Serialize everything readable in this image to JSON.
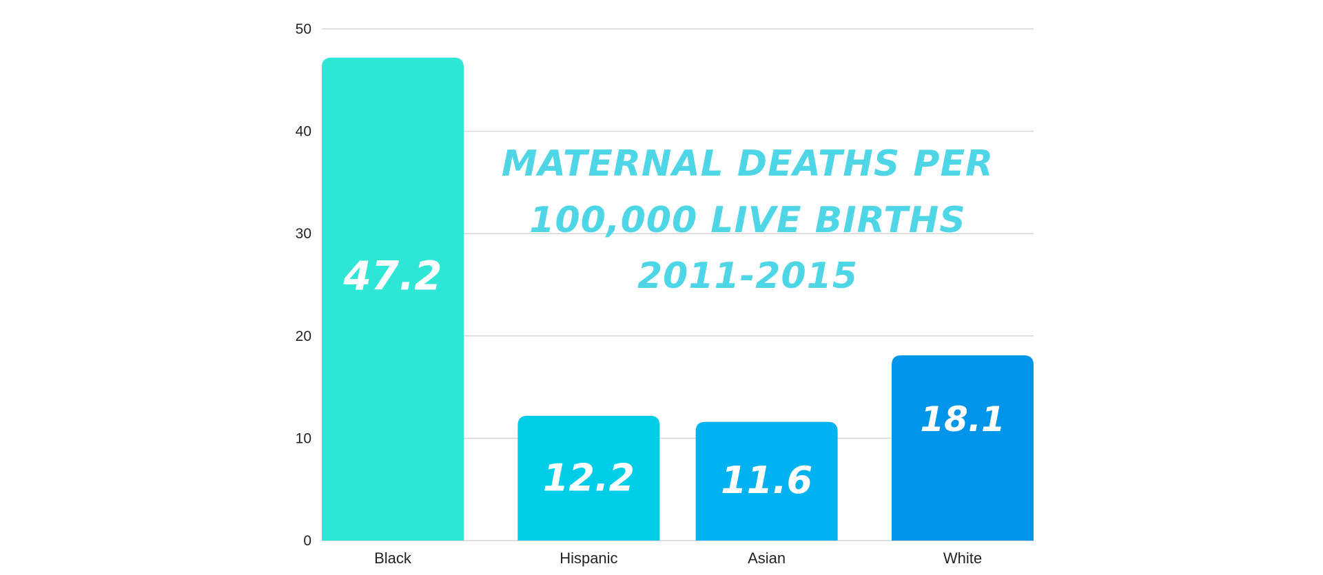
{
  "chart_data": {
    "type": "bar",
    "title_lines": [
      "MATERNAL DEATHS PER",
      "100,000 LIVE BIRTHS",
      "2011-2015"
    ],
    "categories": [
      "Black",
      "Hispanic",
      "Asian",
      "White"
    ],
    "values": [
      47.2,
      12.2,
      11.6,
      18.1
    ],
    "value_labels": [
      "47.2",
      "12.2",
      "11.6",
      "18.1"
    ],
    "bar_colors": [
      "#2ee6d6",
      "#00cde8",
      "#00b2f0",
      "#0095e8"
    ],
    "title_color": "#4fd6e6",
    "ylim": [
      0,
      50
    ],
    "yticks": [
      0,
      10,
      20,
      30,
      40,
      50
    ],
    "grid": true,
    "xlabel": "",
    "ylabel": ""
  }
}
